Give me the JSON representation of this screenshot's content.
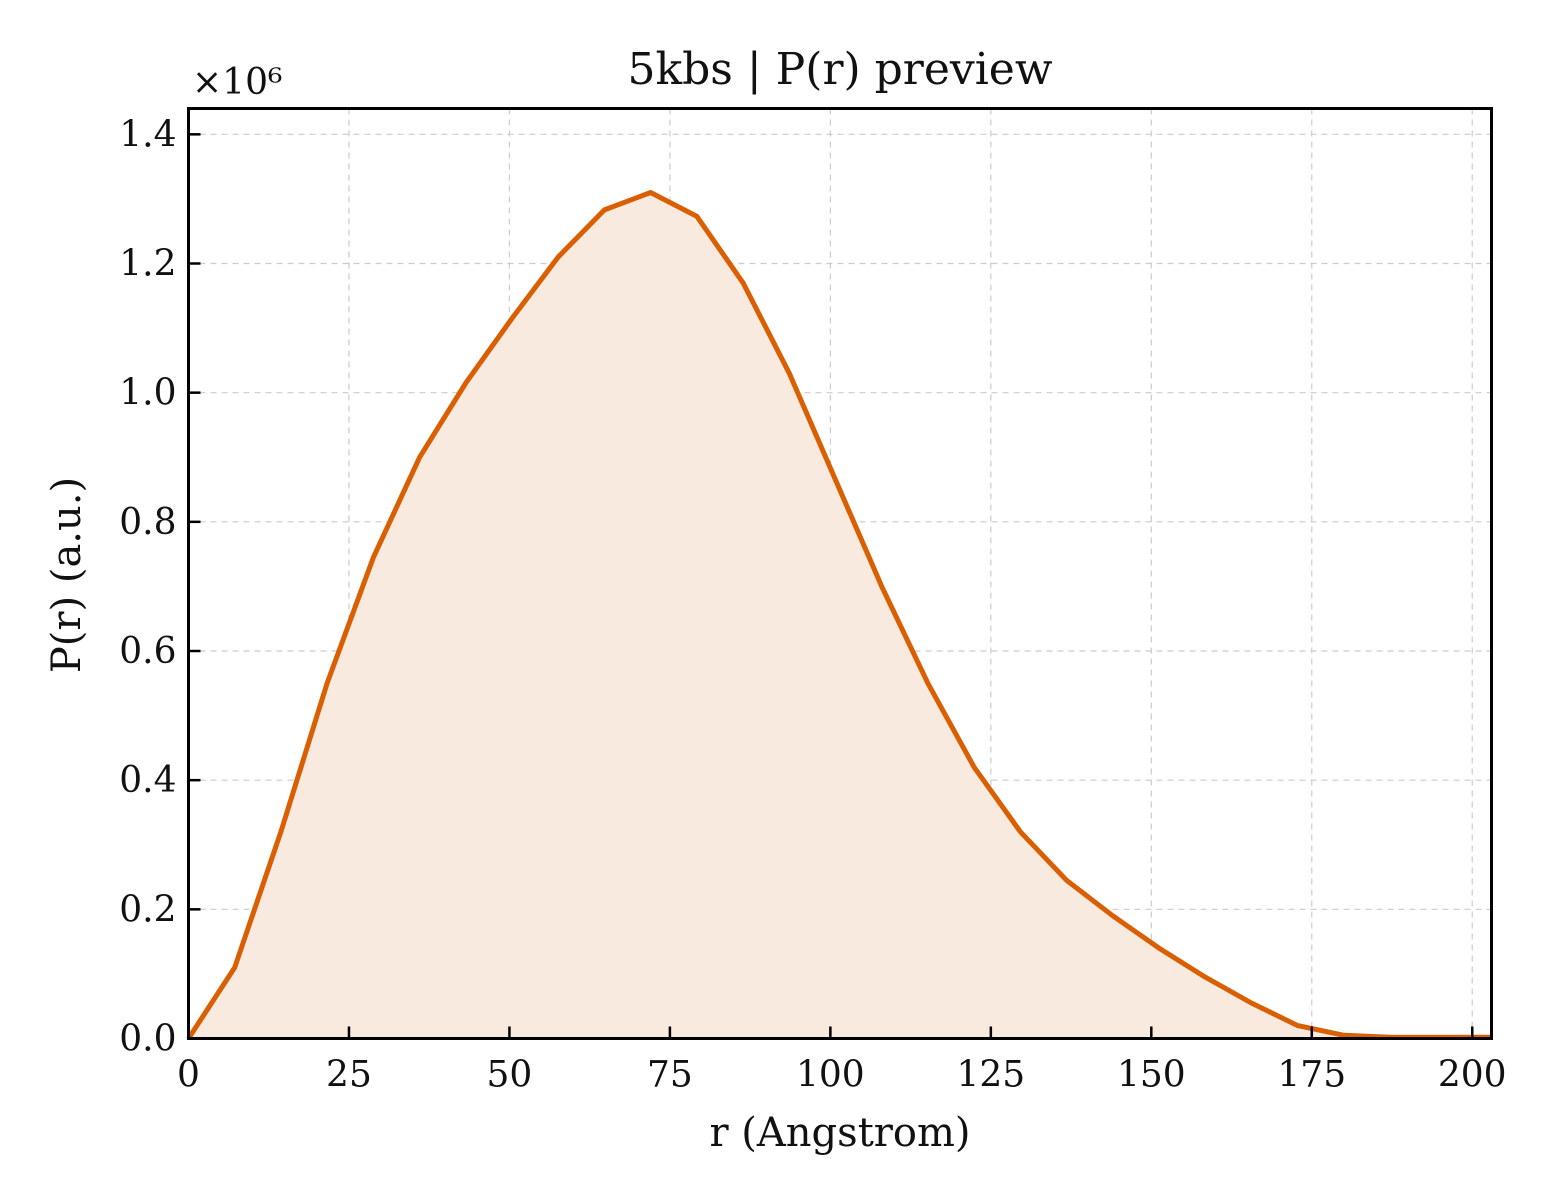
{
  "chart_data": {
    "type": "area",
    "title": "5kbs | P(r) preview",
    "xlabel": "r (Angstrom)",
    "ylabel": "P(r) (a.u.)",
    "y_offset_label": "×10⁶",
    "xlim": [
      0,
      203
    ],
    "ylim": [
      0,
      1.44
    ],
    "xticks": [
      0,
      25,
      50,
      75,
      100,
      125,
      150,
      175,
      200
    ],
    "yticks": [
      0.0,
      0.2,
      0.4,
      0.6,
      0.8,
      1.0,
      1.2,
      1.4
    ],
    "xtick_labels": [
      "0",
      "25",
      "50",
      "75",
      "100",
      "125",
      "150",
      "175",
      "200"
    ],
    "ytick_labels": [
      "0.0",
      "0.2",
      "0.4",
      "0.6",
      "0.8",
      "1.0",
      "1.2",
      "1.4"
    ],
    "grid": true,
    "line_color": "#d95f02",
    "fill_color": "#f9eadf",
    "series": [
      {
        "x": [
          0,
          7.2,
          14.4,
          21.6,
          28.8,
          36,
          43.2,
          50.4,
          57.6,
          64.8,
          72,
          79.2,
          86.4,
          93.6,
          100.8,
          108,
          115.2,
          122.4,
          129.6,
          136.8,
          144,
          151.2,
          158.4,
          165.6,
          172.8,
          180,
          187.2,
          194.4,
          201.6,
          203
        ],
        "values": [
          0.0,
          0.11,
          0.32,
          0.55,
          0.745,
          0.9,
          1.015,
          1.115,
          1.21,
          1.283,
          1.31,
          1.273,
          1.17,
          1.03,
          0.865,
          0.7,
          0.55,
          0.42,
          0.32,
          0.245,
          0.19,
          0.14,
          0.095,
          0.055,
          0.02,
          0.005,
          0.002,
          0.002,
          0.002,
          0.002
        ]
      }
    ]
  }
}
